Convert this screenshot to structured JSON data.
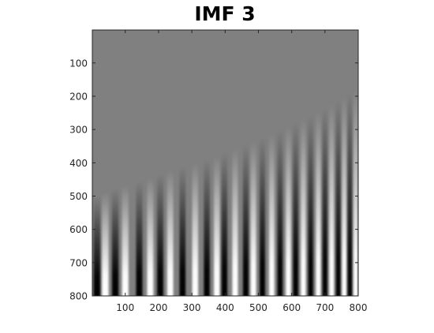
{
  "chart_data": {
    "type": "heatmap",
    "title": "IMF 3",
    "xlabel": "",
    "ylabel": "",
    "colormap": "gray",
    "x_range": [
      1,
      800
    ],
    "y_range": [
      1,
      800
    ],
    "y_direction": "reversed",
    "x_ticks": [
      100,
      200,
      300,
      400,
      500,
      600,
      700,
      800
    ],
    "y_ticks": [
      100,
      200,
      300,
      400,
      500,
      600,
      700,
      800
    ],
    "x_tick_labels": [
      "100",
      "200",
      "300",
      "400",
      "500",
      "600",
      "700",
      "800"
    ],
    "y_tick_labels": [
      "100",
      "200",
      "300",
      "400",
      "500",
      "600",
      "700",
      "800"
    ],
    "grid": false,
    "colors": {
      "background": "#808080",
      "dark": "#000000",
      "light": "#ffffff",
      "axis": "#262626"
    },
    "stripes": {
      "description_units": "data",
      "columns": [
        {
          "x": 15,
          "tone": "dark"
        },
        {
          "x": 40,
          "tone": "light"
        },
        {
          "x": 70,
          "tone": "dark"
        },
        {
          "x": 100,
          "tone": "light"
        },
        {
          "x": 142,
          "tone": "dark"
        },
        {
          "x": 175,
          "tone": "light"
        },
        {
          "x": 205,
          "tone": "dark"
        },
        {
          "x": 235,
          "tone": "light"
        },
        {
          "x": 272,
          "tone": "dark"
        },
        {
          "x": 310,
          "tone": "light"
        },
        {
          "x": 345,
          "tone": "dark"
        },
        {
          "x": 375,
          "tone": "light"
        },
        {
          "x": 398,
          "tone": "dark"
        },
        {
          "x": 430,
          "tone": "light"
        },
        {
          "x": 462,
          "tone": "dark"
        },
        {
          "x": 485,
          "tone": "light"
        },
        {
          "x": 512,
          "tone": "dark"
        },
        {
          "x": 540,
          "tone": "light"
        },
        {
          "x": 565,
          "tone": "dark"
        },
        {
          "x": 590,
          "tone": "light"
        },
        {
          "x": 612,
          "tone": "dark"
        },
        {
          "x": 635,
          "tone": "light"
        },
        {
          "x": 657,
          "tone": "dark"
        },
        {
          "x": 680,
          "tone": "light"
        },
        {
          "x": 700,
          "tone": "dark"
        },
        {
          "x": 720,
          "tone": "light"
        },
        {
          "x": 740,
          "tone": "dark"
        },
        {
          "x": 758,
          "tone": "light"
        },
        {
          "x": 775,
          "tone": "dark"
        },
        {
          "x": 792,
          "tone": "light"
        }
      ],
      "onset_y": {
        "start": 500,
        "end": 180
      },
      "width": {
        "start": 20,
        "end": 13
      }
    }
  }
}
